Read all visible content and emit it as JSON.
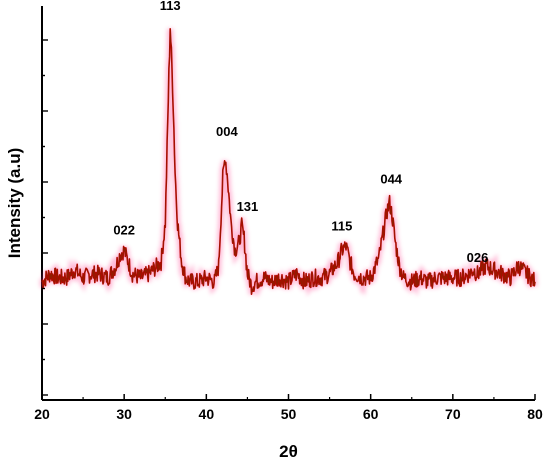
{
  "chart_data": {
    "type": "line",
    "title": "",
    "xlabel": "2θ",
    "ylabel": "Intensity (a.u)",
    "xlim": [
      20,
      80
    ],
    "ylim": [
      0,
      1
    ],
    "x_ticks": [
      20,
      30,
      40,
      50,
      60,
      70,
      80
    ],
    "x_tick_labels": [
      "20",
      "30",
      "40",
      "50",
      "60",
      "70",
      "80"
    ],
    "y_tick_labels_shown": false,
    "grid": false,
    "legend": "none",
    "colors": {
      "line": "#c00000",
      "line_dark": "#7a2a00",
      "glow": "#ff3a8c"
    },
    "series": [
      {
        "x": [
          20,
          21,
          22,
          23,
          24,
          25,
          26,
          27,
          28,
          29,
          29.5,
          30,
          30.5,
          31,
          32,
          33,
          34,
          34.5,
          35,
          35.3,
          35.6,
          35.9,
          36.2,
          36.5,
          37,
          37.5,
          38,
          39,
          40,
          41,
          41.5,
          42,
          42.3,
          42.6,
          43,
          43.5,
          44,
          44.3,
          44.6,
          45,
          45.5,
          46,
          47,
          48,
          49,
          50,
          51,
          52,
          53,
          54,
          55,
          56,
          56.5,
          57,
          57.5,
          58,
          59,
          60,
          61,
          61.5,
          62,
          62.3,
          62.6,
          63,
          63.5,
          64,
          65,
          66,
          67,
          68,
          69,
          70,
          71,
          72,
          72.5,
          73,
          74,
          75,
          76,
          77,
          78,
          79,
          80
        ],
        "y": [
          0.3,
          0.32,
          0.31,
          0.31,
          0.33,
          0.31,
          0.32,
          0.32,
          0.31,
          0.34,
          0.37,
          0.38,
          0.35,
          0.32,
          0.31,
          0.32,
          0.34,
          0.35,
          0.45,
          0.7,
          0.95,
          0.8,
          0.58,
          0.45,
          0.35,
          0.31,
          0.3,
          0.3,
          0.31,
          0.3,
          0.34,
          0.56,
          0.62,
          0.56,
          0.45,
          0.38,
          0.4,
          0.44,
          0.41,
          0.32,
          0.29,
          0.3,
          0.31,
          0.3,
          0.31,
          0.3,
          0.32,
          0.3,
          0.31,
          0.31,
          0.32,
          0.35,
          0.38,
          0.39,
          0.35,
          0.32,
          0.31,
          0.31,
          0.36,
          0.42,
          0.48,
          0.5,
          0.47,
          0.4,
          0.34,
          0.31,
          0.3,
          0.31,
          0.3,
          0.31,
          0.31,
          0.31,
          0.31,
          0.32,
          0.33,
          0.32,
          0.34,
          0.33,
          0.32,
          0.31,
          0.34,
          0.32,
          0.3
        ]
      }
    ],
    "annotations": [
      {
        "text": "022",
        "x": 30,
        "y": 0.42
      },
      {
        "text": "113",
        "x": 35.6,
        "y": 0.99
      },
      {
        "text": "004",
        "x": 42.5,
        "y": 0.67
      },
      {
        "text": "131",
        "x": 45,
        "y": 0.48
      },
      {
        "text": "115",
        "x": 56.5,
        "y": 0.43
      },
      {
        "text": "044",
        "x": 62.5,
        "y": 0.55
      },
      {
        "text": "026",
        "x": 73,
        "y": 0.35
      }
    ]
  }
}
